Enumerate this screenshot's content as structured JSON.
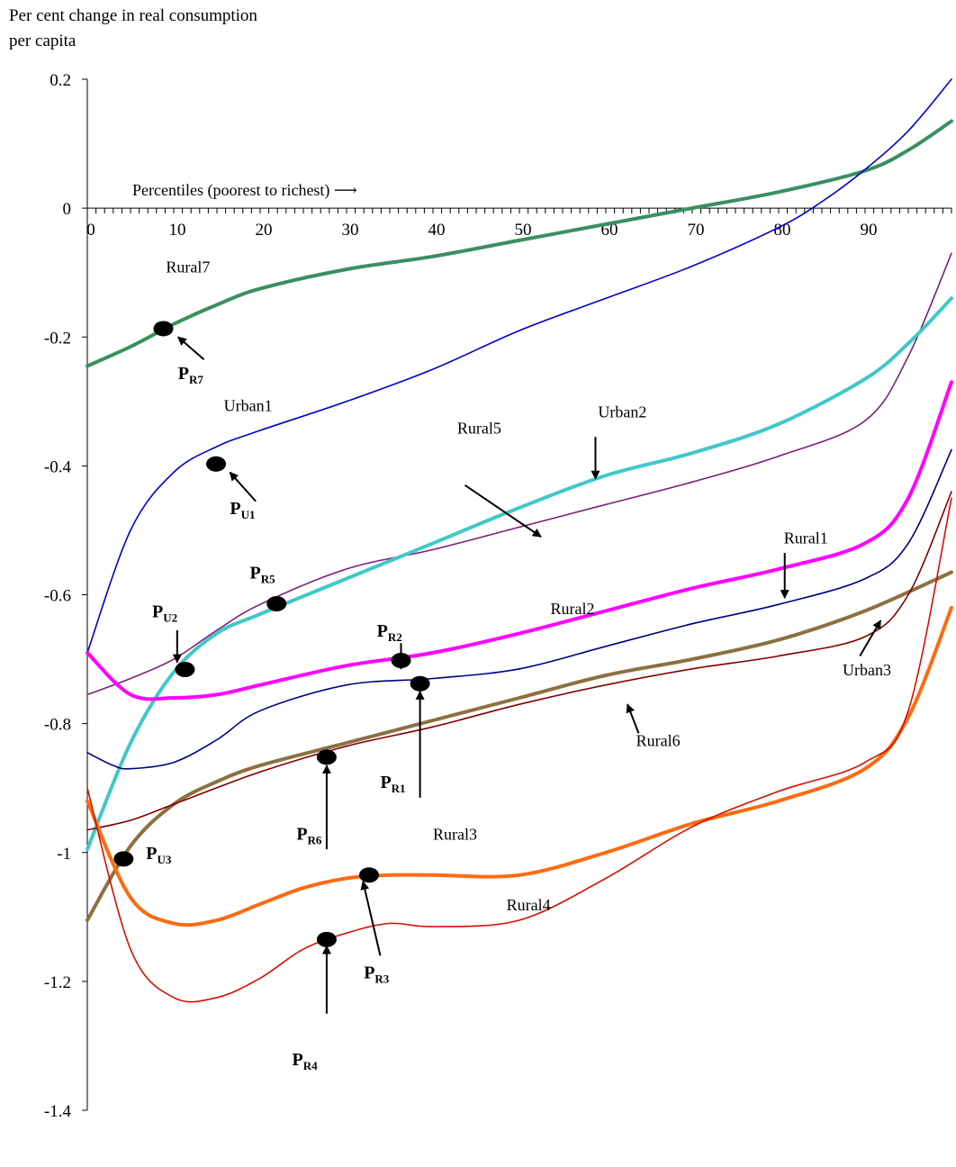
{
  "chart_data": {
    "type": "line",
    "ylabel_line1": "Per cent change in real consumption",
    "ylabel_line2": "per capita",
    "xlabel": "Percentiles (poorest to richest) ⟶",
    "xlim": [
      0,
      100
    ],
    "ylim": [
      -1.4,
      0.2
    ],
    "y_ticks": [
      "0.2",
      "0",
      "-0.2",
      "-0.4",
      "-0.6",
      "-0.8",
      "-1",
      "-1.2",
      "-1.4"
    ],
    "y_tick_values": [
      0.2,
      0,
      -0.2,
      -0.4,
      -0.6,
      -0.8,
      -1,
      -1.2,
      -1.4
    ],
    "x_ticks": [
      "0",
      "10",
      "20",
      "30",
      "40",
      "50",
      "60",
      "70",
      "80",
      "90"
    ],
    "x_tick_values": [
      0,
      10,
      20,
      30,
      40,
      50,
      60,
      70,
      80,
      90
    ],
    "grid": false,
    "series": [
      {
        "name": "Rural7",
        "color": "#3a8f62",
        "width": 4,
        "x": [
          0,
          5,
          10,
          15,
          20,
          30,
          40,
          50,
          60,
          70,
          80,
          90,
          95,
          100
        ],
        "y": [
          -0.245,
          -0.215,
          -0.18,
          -0.15,
          -0.125,
          -0.095,
          -0.075,
          -0.05,
          -0.025,
          0.0,
          0.025,
          0.058,
          0.09,
          0.135
        ]
      },
      {
        "name": "Urban1",
        "color": "#0000cc",
        "width": 1.6,
        "x": [
          0,
          5,
          10,
          15,
          20,
          30,
          40,
          50,
          60,
          70,
          80,
          85,
          90,
          95,
          100
        ],
        "y": [
          -0.69,
          -0.5,
          -0.41,
          -0.37,
          -0.345,
          -0.3,
          -0.25,
          -0.19,
          -0.14,
          -0.09,
          -0.03,
          0.01,
          0.06,
          0.12,
          0.2
        ]
      },
      {
        "name": "Rural5",
        "color": "#7a1f7a",
        "width": 1.6,
        "x": [
          0,
          5,
          10,
          15,
          20,
          30,
          40,
          50,
          60,
          70,
          80,
          90,
          95,
          100
        ],
        "y": [
          -0.755,
          -0.73,
          -0.7,
          -0.655,
          -0.615,
          -0.56,
          -0.53,
          -0.495,
          -0.46,
          -0.425,
          -0.385,
          -0.33,
          -0.23,
          -0.07
        ]
      },
      {
        "name": "Urban2",
        "color": "#40c8c8",
        "width": 4,
        "x": [
          0,
          5,
          10,
          15,
          20,
          30,
          40,
          50,
          60,
          70,
          80,
          90,
          95,
          100
        ],
        "y": [
          -0.995,
          -0.83,
          -0.72,
          -0.66,
          -0.63,
          -0.575,
          -0.52,
          -0.465,
          -0.415,
          -0.38,
          -0.335,
          -0.265,
          -0.21,
          -0.14
        ]
      },
      {
        "name": "Rural2",
        "color": "#ff00ff",
        "width": 4,
        "x": [
          0,
          5,
          10,
          15,
          20,
          30,
          40,
          50,
          60,
          70,
          80,
          90,
          95,
          100
        ],
        "y": [
          -0.69,
          -0.755,
          -0.76,
          -0.755,
          -0.74,
          -0.71,
          -0.69,
          -0.66,
          -0.625,
          -0.59,
          -0.56,
          -0.52,
          -0.45,
          -0.27
        ]
      },
      {
        "name": "Rural1",
        "color": "#000080",
        "width": 1.6,
        "x": [
          0,
          3,
          5,
          10,
          15,
          20,
          30,
          40,
          50,
          60,
          70,
          80,
          90,
          95,
          100
        ],
        "y": [
          -0.845,
          -0.865,
          -0.87,
          -0.86,
          -0.825,
          -0.78,
          -0.74,
          -0.73,
          -0.715,
          -0.68,
          -0.645,
          -0.615,
          -0.575,
          -0.52,
          -0.375
        ]
      },
      {
        "name": "Urban3",
        "color": "#8c7040",
        "width": 4,
        "x": [
          0,
          5,
          10,
          15,
          20,
          30,
          40,
          50,
          60,
          70,
          80,
          90,
          100
        ],
        "y": [
          -1.105,
          -0.99,
          -0.925,
          -0.89,
          -0.865,
          -0.83,
          -0.795,
          -0.76,
          -0.725,
          -0.7,
          -0.67,
          -0.625,
          -0.565
        ]
      },
      {
        "name": "Rural6",
        "color": "#800000",
        "width": 1.6,
        "x": [
          0,
          5,
          10,
          20,
          30,
          40,
          50,
          60,
          70,
          80,
          90,
          95,
          100
        ],
        "y": [
          -0.965,
          -0.95,
          -0.925,
          -0.875,
          -0.835,
          -0.805,
          -0.77,
          -0.74,
          -0.715,
          -0.695,
          -0.665,
          -0.6,
          -0.44
        ]
      },
      {
        "name": "Rural3",
        "color": "#ff6a10",
        "width": 4,
        "x": [
          0,
          5,
          10,
          15,
          20,
          25,
          30,
          35,
          40,
          50,
          60,
          70,
          80,
          90,
          95,
          100
        ],
        "y": [
          -0.92,
          -1.07,
          -1.11,
          -1.105,
          -1.08,
          -1.055,
          -1.04,
          -1.035,
          -1.035,
          -1.035,
          -1.0,
          -0.955,
          -0.92,
          -0.87,
          -0.79,
          -0.62
        ]
      },
      {
        "name": "Rural4",
        "color": "#d41000",
        "width": 1.6,
        "x": [
          0,
          5,
          10,
          15,
          20,
          25,
          30,
          35,
          40,
          50,
          60,
          70,
          80,
          90,
          95,
          100
        ],
        "y": [
          -0.9,
          -1.15,
          -1.225,
          -1.225,
          -1.195,
          -1.15,
          -1.125,
          -1.11,
          -1.115,
          -1.105,
          -1.04,
          -0.96,
          -0.905,
          -0.86,
          -0.78,
          -0.45
        ]
      }
    ],
    "series_labels": [
      {
        "text": "Rural7",
        "x": 9.1,
        "y": -0.1
      },
      {
        "text": "Urban1",
        "x": 15.8,
        "y": -0.315
      },
      {
        "text": "Urban2",
        "x": 59.1,
        "y": -0.325
      },
      {
        "text": "Rural5",
        "x": 42.8,
        "y": -0.35
      },
      {
        "text": "Rural1",
        "x": 80.6,
        "y": -0.52
      },
      {
        "text": "Rural2",
        "x": 53.6,
        "y": -0.63
      },
      {
        "text": "Urban3",
        "x": 87.4,
        "y": -0.725
      },
      {
        "text": "Rural6",
        "x": 63.5,
        "y": -0.835
      },
      {
        "text": "Rural3",
        "x": 40.0,
        "y": -0.98
      },
      {
        "text": "Rural4",
        "x": 48.5,
        "y": -1.09
      }
    ],
    "points": [
      {
        "label": "P",
        "sub": "R7",
        "x": 8.8,
        "y": -0.187,
        "lx": 10.5,
        "ly": -0.265,
        "ax1": 13.5,
        "ay1": -0.235,
        "ax2": 10.5,
        "ay2": -0.2
      },
      {
        "label": "P",
        "sub": "U1",
        "x": 14.9,
        "y": -0.397,
        "lx": 16.5,
        "ly": -0.475,
        "ax1": 19.5,
        "ay1": -0.455,
        "ax2": 16.5,
        "ay2": -0.41
      },
      {
        "label": "P",
        "sub": "R5",
        "x": 21.9,
        "y": -0.614,
        "lx": 18.8,
        "ly": -0.575,
        "ax1": null,
        "ay1": null,
        "ax2": null,
        "ay2": null
      },
      {
        "label": "P",
        "sub": "U2",
        "x": 11.3,
        "y": -0.716,
        "lx": 7.5,
        "ly": -0.635,
        "ax1": 10.4,
        "ay1": -0.655,
        "ax2": 10.4,
        "ay2": -0.705
      },
      {
        "label": "P",
        "sub": "R2",
        "x": 36.3,
        "y": -0.702,
        "lx": 33.5,
        "ly": -0.665,
        "ax1": 36.3,
        "ay1": -0.675,
        "ax2": 36.3,
        "ay2": -0.715
      },
      {
        "label": "P",
        "sub": "R1",
        "x": 38.5,
        "y": -0.738,
        "lx": 33.9,
        "ly": -0.9,
        "ax1": 38.5,
        "ay1": -0.915,
        "ax2": 38.5,
        "ay2": -0.75
      },
      {
        "label": "P",
        "sub": "R6",
        "x": 27.7,
        "y": -0.852,
        "lx": 24.2,
        "ly": -0.98,
        "ax1": 27.7,
        "ay1": -0.995,
        "ax2": 27.7,
        "ay2": -0.865
      },
      {
        "label": "P",
        "sub": "U3",
        "x": 4.2,
        "y": -1.01,
        "lx": 6.8,
        "ly": -1.01,
        "ax1": null,
        "ay1": null,
        "ax2": null,
        "ay2": null
      },
      {
        "label": "P",
        "sub": "R3",
        "x": 32.6,
        "y": -1.035,
        "lx": 32.0,
        "ly": -1.195,
        "ax1": 33.9,
        "ay1": -1.16,
        "ax2": 31.9,
        "ay2": -1.045
      },
      {
        "label": "P",
        "sub": "R4",
        "x": 27.7,
        "y": -1.135,
        "lx": 23.7,
        "ly": -1.33,
        "ax1": 27.7,
        "ay1": -1.25,
        "ax2": 27.7,
        "ay2": -1.145
      }
    ],
    "pointer_arrows": [
      {
        "x1": 43.7,
        "y1": -0.43,
        "x2": 52.5,
        "y2": -0.51
      },
      {
        "x1": 58.8,
        "y1": -0.355,
        "x2": 58.8,
        "y2": -0.42
      },
      {
        "x1": 80.7,
        "y1": -0.535,
        "x2": 80.7,
        "y2": -0.605
      },
      {
        "x1": 63.8,
        "y1": -0.815,
        "x2": 62.5,
        "y2": -0.77
      },
      {
        "x1": 89.4,
        "y1": -0.695,
        "x2": 91.8,
        "y2": -0.64
      }
    ]
  }
}
